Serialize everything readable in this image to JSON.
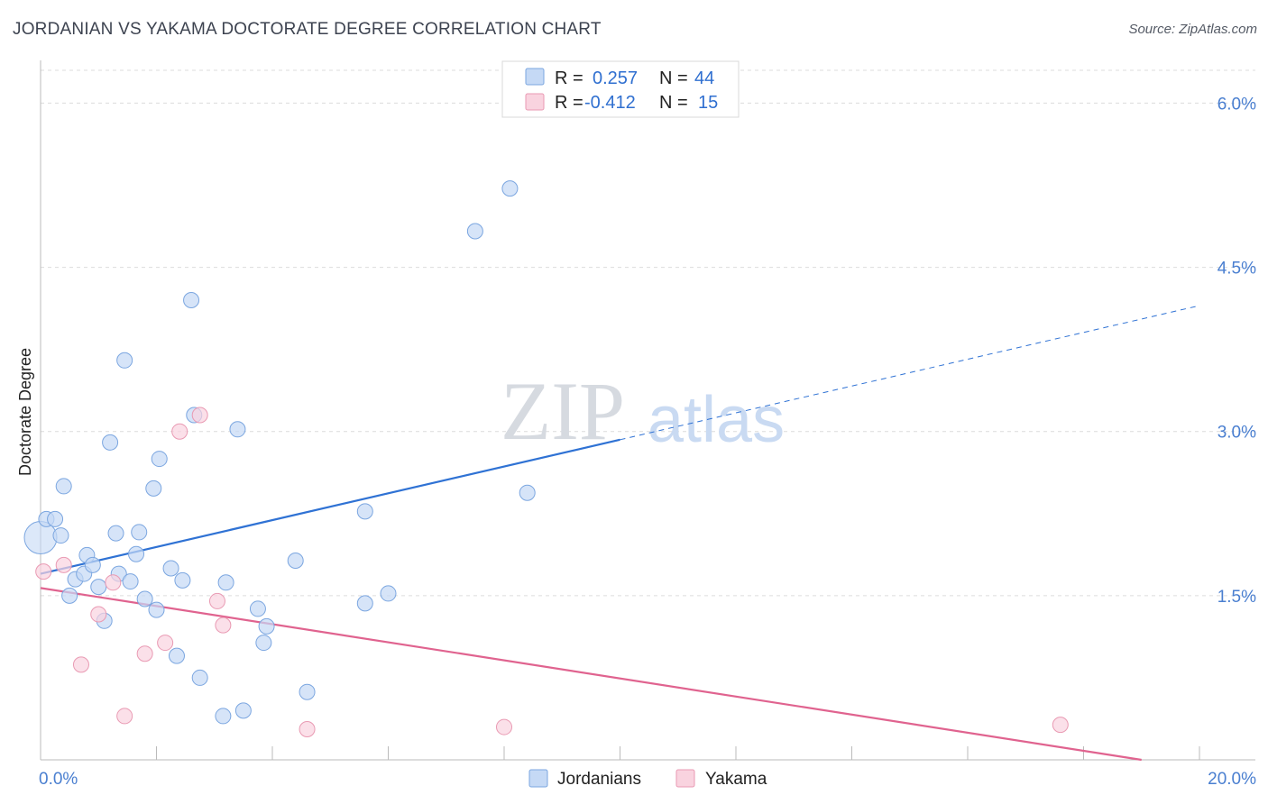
{
  "title": "JORDANIAN VS YAKAMA DOCTORATE DEGREE CORRELATION CHART",
  "source": "Source: ZipAtlas.com",
  "watermark": {
    "zip": "ZIP",
    "atlas": "atlas"
  },
  "colors": {
    "jordanian_fill": "#c5d9f5",
    "jordanian_stroke": "#7ba6e0",
    "jordanian_line": "#2f72d4",
    "yakama_fill": "#f9d3df",
    "yakama_stroke": "#e99ab3",
    "yakama_line": "#e0638f",
    "grid": "#dcdcdc",
    "tick_label": "#4a7fd0"
  },
  "legend": {
    "r_label": "R =",
    "n_label": "N =",
    "rows": [
      {
        "r": "0.257",
        "n": "44"
      },
      {
        "r": "-0.412",
        "n": "15"
      }
    ]
  },
  "chart_data": {
    "type": "scatter",
    "title": "JORDANIAN VS YAKAMA DOCTORATE DEGREE CORRELATION CHART",
    "xlabel": "",
    "ylabel": "Doctorate Degree",
    "xlim": [
      0,
      20
    ],
    "ylim": [
      0,
      6.3
    ],
    "x_tick_labels": [
      "0.0%",
      "20.0%"
    ],
    "y_ticks": [
      1.5,
      3.0,
      4.5,
      6.0
    ],
    "y_tick_labels": [
      "1.5%",
      "3.0%",
      "4.5%",
      "6.0%"
    ],
    "grid": true,
    "legend_placement": "bottom-center",
    "series": [
      {
        "name": "Jordanians",
        "points": [
          [
            0.1,
            2.2
          ],
          [
            0.25,
            2.2
          ],
          [
            0.35,
            2.05
          ],
          [
            0.4,
            2.5
          ],
          [
            0.5,
            1.5
          ],
          [
            0.6,
            1.65
          ],
          [
            0.75,
            1.7
          ],
          [
            0.8,
            1.87
          ],
          [
            0.9,
            1.78
          ],
          [
            1.0,
            1.58
          ],
          [
            1.1,
            1.27
          ],
          [
            1.2,
            2.9
          ],
          [
            1.3,
            2.07
          ],
          [
            1.35,
            1.7
          ],
          [
            1.45,
            3.65
          ],
          [
            1.55,
            1.63
          ],
          [
            1.65,
            1.88
          ],
          [
            1.7,
            2.08
          ],
          [
            1.8,
            1.47
          ],
          [
            1.95,
            2.48
          ],
          [
            2.0,
            1.37
          ],
          [
            2.05,
            2.75
          ],
          [
            2.25,
            1.75
          ],
          [
            2.35,
            0.95
          ],
          [
            2.45,
            1.64
          ],
          [
            2.6,
            4.2
          ],
          [
            2.65,
            3.15
          ],
          [
            2.75,
            0.75
          ],
          [
            3.15,
            0.4
          ],
          [
            3.2,
            1.62
          ],
          [
            3.4,
            3.02
          ],
          [
            3.5,
            0.45
          ],
          [
            3.75,
            1.38
          ],
          [
            3.9,
            1.22
          ],
          [
            3.85,
            1.07
          ],
          [
            4.4,
            1.82
          ],
          [
            4.6,
            0.62
          ],
          [
            5.6,
            1.43
          ],
          [
            5.6,
            2.27
          ],
          [
            6.0,
            1.52
          ],
          [
            7.5,
            4.83
          ],
          [
            8.1,
            5.22
          ],
          [
            8.4,
            2.44
          ],
          [
            0.05,
            2.03
          ]
        ]
      },
      {
        "name": "Yakama",
        "points": [
          [
            0.05,
            1.72
          ],
          [
            0.4,
            1.78
          ],
          [
            0.7,
            0.87
          ],
          [
            1.0,
            1.33
          ],
          [
            1.25,
            1.62
          ],
          [
            1.45,
            0.4
          ],
          [
            1.8,
            0.97
          ],
          [
            2.15,
            1.07
          ],
          [
            2.4,
            3.0
          ],
          [
            2.75,
            3.15
          ],
          [
            3.05,
            1.45
          ],
          [
            3.15,
            1.23
          ],
          [
            4.6,
            0.28
          ],
          [
            8.0,
            0.3
          ],
          [
            17.6,
            0.32
          ]
        ]
      }
    ],
    "trend_lines": [
      {
        "series": "Jordanians",
        "x": [
          0,
          10,
          20
        ],
        "y": [
          1.7,
          2.92,
          4.15
        ],
        "solid_until": 10
      },
      {
        "series": "Yakama",
        "x": [
          0,
          19.0
        ],
        "y": [
          1.57,
          0.0
        ]
      }
    ]
  },
  "bottom_legend": [
    "Jordanians",
    "Yakama"
  ]
}
